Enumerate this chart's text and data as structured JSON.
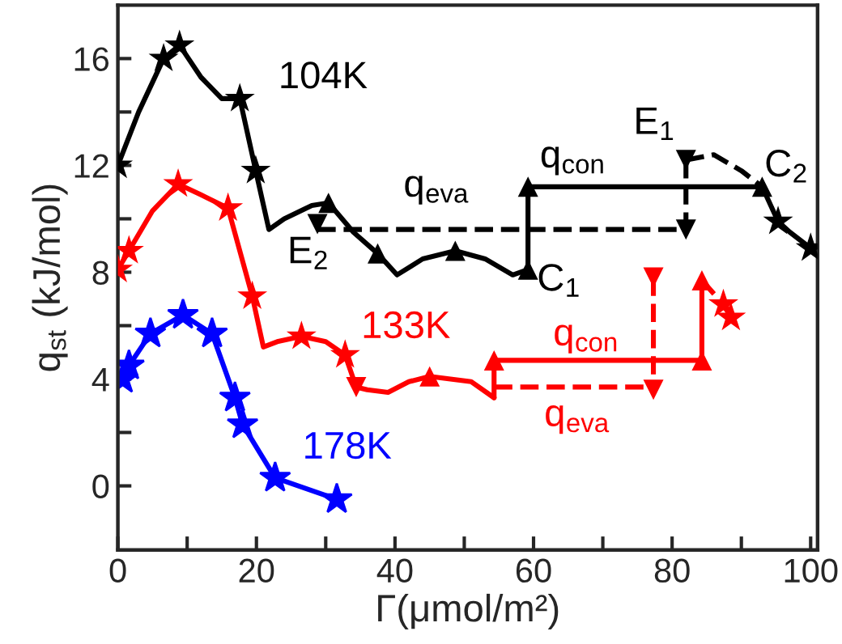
{
  "chart_data": {
    "type": "line",
    "xlabel": "Γ(μmol/m²)",
    "ylabel": "q$_{st}$ (kJ/mol)",
    "xlim": [
      0,
      101
    ],
    "ylim": [
      -2.4,
      18
    ],
    "xticks": [
      0,
      {
        "value": 10,
        "label": null
      },
      20,
      {
        "value": 30,
        "label": null
      },
      40,
      {
        "value": 50,
        "label": null
      },
      60,
      {
        "value": 70,
        "label": null
      },
      80,
      {
        "value": 90,
        "label": null
      },
      100
    ],
    "yticks": [
      0,
      {
        "value": 2,
        "label": null
      },
      4,
      {
        "value": 6,
        "label": null
      },
      8,
      {
        "value": 10,
        "label": null
      },
      12,
      {
        "value": 14,
        "label": null
      },
      16
    ],
    "series": [
      {
        "name": "104K",
        "color": "#000000",
        "marker": "none",
        "line_style": "solid",
        "x": [
          0,
          3,
          6.6,
          8.9,
          12,
          15,
          17.6,
          19.9,
          21.8,
          24,
          28,
          30.4,
          34,
          37.5,
          40.3,
          44,
          48.7,
          53,
          57,
          59.2
        ],
        "values": [
          12,
          14,
          16,
          16.5,
          15.3,
          14.5,
          14.5,
          11.8,
          9.6,
          10,
          10.5,
          10.6,
          9.5,
          8.7,
          7.9,
          8.5,
          8.8,
          8.5,
          7.9,
          8.1
        ]
      },
      {
        "name": "q$_{con}$",
        "color": "#000000",
        "marker": "none",
        "line_style": "solid",
        "x": [
          59.2,
          59.2,
          93
        ],
        "values": [
          8.1,
          11.2,
          11.2
        ]
      },
      {
        "color": "#000000",
        "marker": "none",
        "line_style": "solid",
        "x": [
          93,
          95.3,
          97,
          100
        ],
        "values": [
          11.2,
          9.9,
          9.5,
          8.9
        ]
      },
      {
        "name": "q$_{eva}$",
        "color": "#000000",
        "marker": "none",
        "line_style": "dashed",
        "x": [
          28.8,
          82
        ],
        "values": [
          9.6,
          9.6
        ]
      },
      {
        "color": "#000000",
        "marker": "none",
        "line_style": "dashed",
        "x": [
          82,
          82
        ],
        "values": [
          12.2,
          9.6
        ]
      },
      {
        "color": "#000000",
        "marker": "none",
        "line_style": "dashed",
        "x": [
          82,
          86,
          90,
          93
        ],
        "values": [
          12.2,
          12.4,
          11.8,
          11.2
        ]
      },
      {
        "type": "scatter",
        "color": "#000000",
        "marker": "star",
        "x": [
          0,
          6.6,
          8.9,
          17.6,
          19.9,
          95.3,
          100
        ],
        "values": [
          12,
          16,
          16.5,
          14.5,
          11.8,
          9.9,
          8.9
        ]
      },
      {
        "type": "scatter",
        "color": "#000000",
        "marker": "triangle",
        "x": [
          30.4,
          37.5,
          48.7,
          59.2
        ],
        "values": [
          10.6,
          8.7,
          8.8,
          11.2
        ]
      },
      {
        "type": "scatter",
        "name": "C$_{1}$",
        "color": "#000000",
        "marker": "triangle",
        "x": [
          59.2
        ],
        "values": [
          8.1
        ]
      },
      {
        "type": "scatter",
        "name": "C$_{2}$",
        "color": "#000000",
        "marker": "triangle",
        "x": [
          93
        ],
        "values": [
          11.2
        ]
      },
      {
        "type": "scatter",
        "name": "E$_{2}$",
        "color": "#000000",
        "marker": "triangle_down",
        "x": [
          28.8
        ],
        "values": [
          9.8
        ]
      },
      {
        "type": "scatter",
        "name": "E$_{1}$",
        "color": "#000000",
        "marker": "triangle_down",
        "x": [
          82
        ],
        "values": [
          12.2
        ]
      },
      {
        "type": "scatter",
        "color": "#000000",
        "marker": "triangle_down",
        "x": [
          82
        ],
        "values": [
          9.6
        ]
      },
      {
        "name": "133K",
        "color": "#ff0000",
        "marker": "none",
        "line_style": "solid",
        "x": [
          0,
          1.6,
          5,
          8.7,
          12,
          15.9,
          19.4,
          21,
          23,
          26.5,
          30,
          32.8,
          34.4,
          36,
          39,
          42,
          45,
          48,
          51,
          54.3
        ],
        "values": [
          8.1,
          8.8,
          10.3,
          11.3,
          10.9,
          10.4,
          7.1,
          5.2,
          5.4,
          5.6,
          5.4,
          4.9,
          3.7,
          3.6,
          3.5,
          3.9,
          4.1,
          4.0,
          3.9,
          3.3
        ]
      },
      {
        "name": "q$_{con}$",
        "color": "#ff0000",
        "marker": "none",
        "line_style": "solid",
        "x": [
          54.3,
          54.3,
          84.3,
          84.3
        ],
        "values": [
          3.3,
          4.7,
          4.7,
          7.7
        ]
      },
      {
        "color": "#ff0000",
        "marker": "none",
        "line_style": "dashed",
        "x": [
          84.3,
          86,
          87.4,
          88.5
        ],
        "values": [
          7.7,
          7.2,
          6.8,
          6.3
        ]
      },
      {
        "name": "q$_{eva}$",
        "color": "#ff0000",
        "marker": "none",
        "line_style": "dashed",
        "x": [
          54.3,
          77.3
        ],
        "values": [
          3.7,
          3.7
        ]
      },
      {
        "color": "#ff0000",
        "marker": "none",
        "line_style": "dashed",
        "x": [
          77.3,
          77.3
        ],
        "values": [
          7.8,
          3.6
        ]
      },
      {
        "type": "scatter",
        "color": "#ff0000",
        "marker": "star",
        "x": [
          0,
          1.6,
          8.7,
          15.9,
          19.4,
          26.5,
          32.8,
          87.4,
          88.5
        ],
        "values": [
          8.1,
          8.8,
          11.3,
          10.4,
          7.1,
          5.6,
          4.9,
          6.8,
          6.3
        ]
      },
      {
        "type": "scatter",
        "color": "#ff0000",
        "marker": "triangle",
        "x": [
          45,
          54.3,
          84.3,
          84.3
        ],
        "values": [
          4.1,
          4.7,
          4.7,
          7.7
        ]
      },
      {
        "type": "scatter",
        "color": "#ff0000",
        "marker": "triangle_down",
        "x": [
          34.4,
          77.3,
          77.3
        ],
        "values": [
          3.7,
          7.8,
          3.6
        ]
      },
      {
        "name": "178K",
        "color": "#0000ff",
        "marker": "star",
        "line_style": "solid",
        "x": [
          0.7,
          1.6,
          4.7,
          9.4,
          13.6,
          16.9,
          18,
          22.7,
          31.6
        ],
        "values": [
          4.0,
          4.5,
          5.7,
          6.4,
          5.7,
          3.3,
          2.3,
          0.3,
          -0.5
        ]
      }
    ]
  }
}
